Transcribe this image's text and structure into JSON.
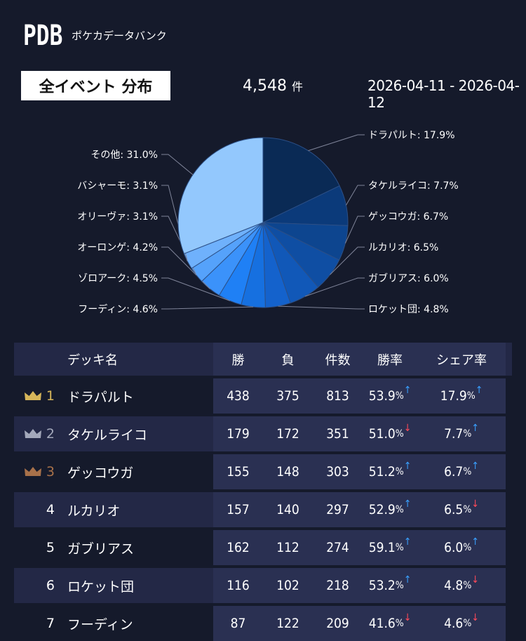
{
  "brand": {
    "logo": "PDB",
    "subtitle": "ポケカデータバンク"
  },
  "filter": {
    "event_label": "全イベント 分布",
    "count": "4,548",
    "count_unit": "件",
    "date_range": "2026-04-11 - 2026-04-12"
  },
  "chart_data": {
    "type": "pie",
    "slices": [
      {
        "label": "ドラパルト: 17.9%",
        "value": 17.9,
        "color": "#0a2a55"
      },
      {
        "label": "タケルライコ: 7.7%",
        "value": 7.7,
        "color": "#0b3a7a"
      },
      {
        "label": "ゲッコウガ: 6.7%",
        "value": 6.7,
        "color": "#0d458f"
      },
      {
        "label": "ルカリオ: 6.5%",
        "value": 6.5,
        "color": "#0f4ea3"
      },
      {
        "label": "ガブリアス: 6.0%",
        "value": 6.0,
        "color": "#1158b8"
      },
      {
        "label": "ロケット団: 4.8%",
        "value": 4.8,
        "color": "#1462cc"
      },
      {
        "label": "フーディン: 4.6%",
        "value": 4.6,
        "color": "#1670e0"
      },
      {
        "label": "ゾロアーク: 4.5%",
        "value": 4.5,
        "color": "#1f80f5"
      },
      {
        "label": "オーロンゲ: 4.2%",
        "value": 4.2,
        "color": "#3b92fa"
      },
      {
        "label": "オリーヴァ: 3.1%",
        "value": 3.1,
        "color": "#55a2fb"
      },
      {
        "label": "バシャーモ: 3.1%",
        "value": 3.1,
        "color": "#6fb1fc"
      },
      {
        "label": "その他: 31.0%",
        "value": 31.0,
        "color": "#93c8fd"
      }
    ]
  },
  "table": {
    "headers": {
      "name": "デッキ名",
      "wins": "勝",
      "losses": "負",
      "count": "件数",
      "winrate": "勝率",
      "share": "シェア率"
    },
    "rows": [
      {
        "rank": "1",
        "crown": "gold",
        "name": "ドラパルト",
        "wins": "438",
        "losses": "375",
        "count": "813",
        "winrate": "53.9",
        "winrate_trend": "up",
        "share": "17.9",
        "share_trend": "up"
      },
      {
        "rank": "2",
        "crown": "silver",
        "name": "タケルライコ",
        "wins": "179",
        "losses": "172",
        "count": "351",
        "winrate": "51.0",
        "winrate_trend": "down",
        "share": "7.7",
        "share_trend": "up"
      },
      {
        "rank": "3",
        "crown": "bronze",
        "name": "ゲッコウガ",
        "wins": "155",
        "losses": "148",
        "count": "303",
        "winrate": "51.2",
        "winrate_trend": "up",
        "share": "6.7",
        "share_trend": "up"
      },
      {
        "rank": "4",
        "crown": "",
        "name": "ルカリオ",
        "wins": "157",
        "losses": "140",
        "count": "297",
        "winrate": "52.9",
        "winrate_trend": "up",
        "share": "6.5",
        "share_trend": "down"
      },
      {
        "rank": "5",
        "crown": "",
        "name": "ガブリアス",
        "wins": "162",
        "losses": "112",
        "count": "274",
        "winrate": "59.1",
        "winrate_trend": "up",
        "share": "6.0",
        "share_trend": "up"
      },
      {
        "rank": "6",
        "crown": "",
        "name": "ロケット団",
        "wins": "116",
        "losses": "102",
        "count": "218",
        "winrate": "53.2",
        "winrate_trend": "up",
        "share": "4.8",
        "share_trend": "down"
      },
      {
        "rank": "7",
        "crown": "",
        "name": "フーディン",
        "wins": "87",
        "losses": "122",
        "count": "209",
        "winrate": "41.6",
        "winrate_trend": "down",
        "share": "4.6",
        "share_trend": "down"
      }
    ],
    "pct_symbol": "%",
    "arrows": {
      "up": "↑",
      "down": "↓"
    },
    "crown_colors": {
      "gold": "#d6b65a",
      "silver": "#a3a8ba",
      "bronze": "#a8714a"
    }
  }
}
